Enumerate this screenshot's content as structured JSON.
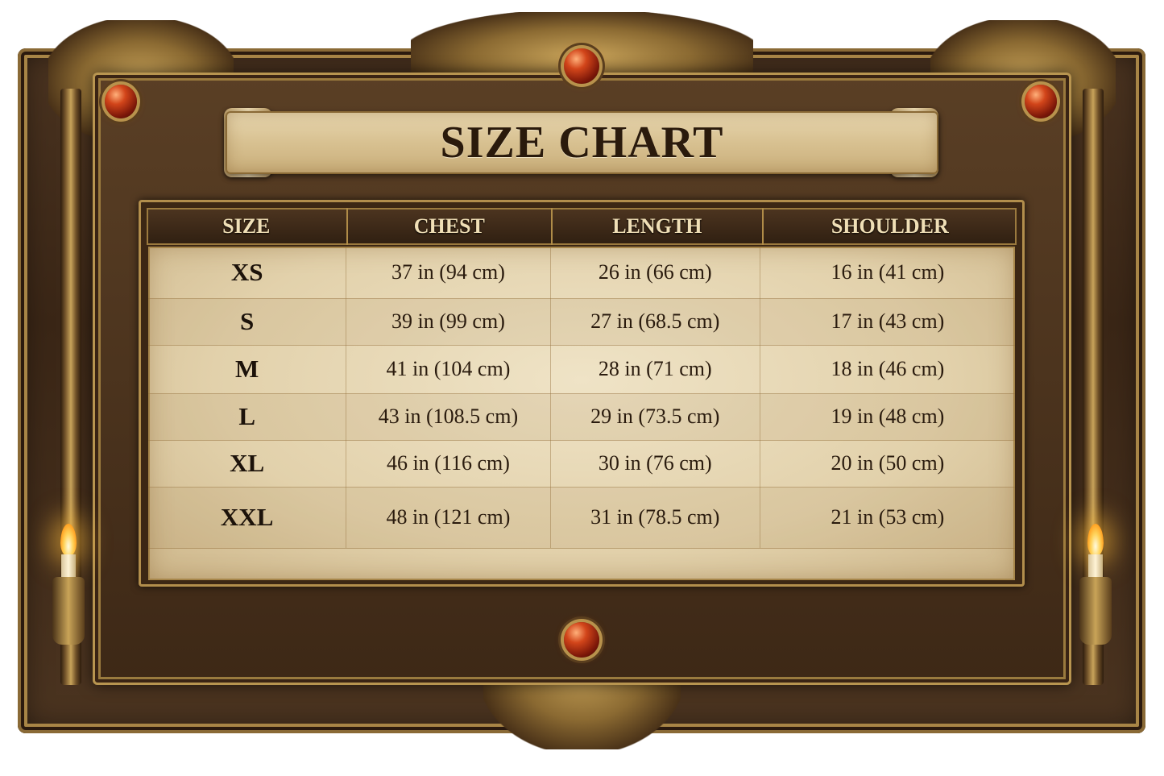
{
  "title": "SIZE CHART",
  "table": {
    "headers": [
      "SIZE",
      "CHEST",
      "LENGTH",
      "SHOULDER"
    ],
    "rows": [
      [
        "XS",
        "37 in (94 cm)",
        "26 in (66 cm)",
        "16 in (41 cm)"
      ],
      [
        "S",
        "39 in (99 cm)",
        "27 in (68.5 cm)",
        "17 in (43 cm)"
      ],
      [
        "M",
        "41 in (104 cm)",
        "28 in (71 cm)",
        "18 in (46 cm)"
      ],
      [
        "L",
        "43 in (108.5 cm)",
        "29 in (73.5 cm)",
        "19 in (48 cm)"
      ],
      [
        "XL",
        "46 in (116 cm)",
        "30 in (76 cm)",
        "20 in (50 cm)"
      ],
      [
        "XXL",
        "48 in (121 cm)",
        "31 in (78.5 cm)",
        "21 in (53 cm)"
      ]
    ]
  },
  "colors": {
    "frame": "#3a2616",
    "gold": "#b8924c",
    "parchment": "#e6d6b2",
    "gem": "#c23a14",
    "text": "#2a1b0e"
  }
}
